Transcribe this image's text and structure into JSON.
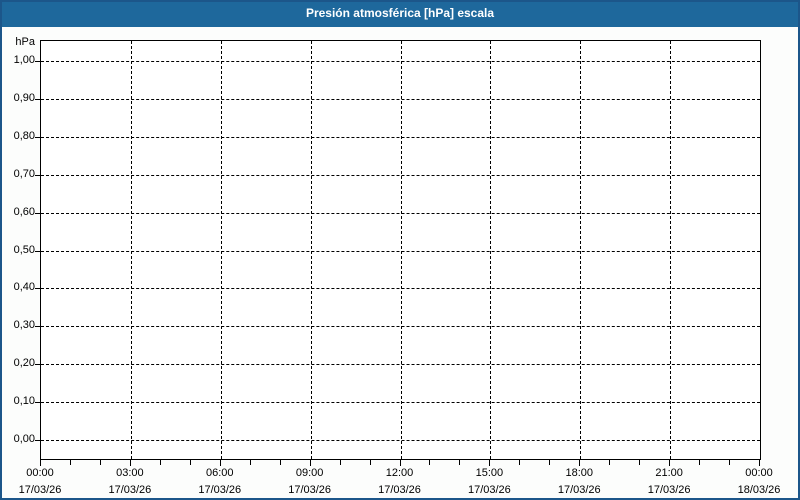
{
  "window": {
    "title": "Presión atmosférica [hPa] escala"
  },
  "colors": {
    "title_bar": "#1E689C",
    "title_text": "#FFFFFF",
    "window_border": "#1C568A",
    "background": "#FCFDFC",
    "plot_background": "#FFFFFF",
    "grid": "#000000",
    "text": "#000000"
  },
  "chart_data": {
    "type": "line",
    "title": "Presión atmosférica [hPa] escala",
    "ylabel": "hPa",
    "ylim": [
      0.0,
      1.0
    ],
    "y_tick_step": 0.1,
    "y_tick_labels": [
      "1,00",
      "0,90",
      "0,80",
      "0,70",
      "0,60",
      "0,50",
      "0,40",
      "0,30",
      "0,20",
      "0,10",
      "0,00"
    ],
    "x_axis": {
      "major_tick_interval_hours": 3,
      "minor_tick_interval_hours": 1,
      "ticks": [
        {
          "time": "00:00",
          "date": "17/03/26"
        },
        {
          "time": "03:00",
          "date": "17/03/26"
        },
        {
          "time": "06:00",
          "date": "17/03/26"
        },
        {
          "time": "09:00",
          "date": "17/03/26"
        },
        {
          "time": "12:00",
          "date": "17/03/26"
        },
        {
          "time": "15:00",
          "date": "17/03/26"
        },
        {
          "time": "18:00",
          "date": "17/03/26"
        },
        {
          "time": "21:00",
          "date": "17/03/26"
        },
        {
          "time": "00:00",
          "date": "18/03/26"
        }
      ]
    },
    "grid": "dashed",
    "legend": "none",
    "series": []
  }
}
